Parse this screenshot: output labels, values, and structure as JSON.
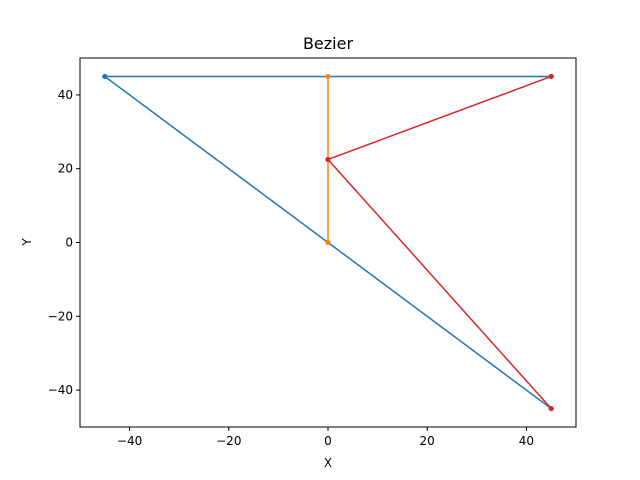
{
  "chart_data": {
    "type": "line",
    "title": "Bezier",
    "xlabel": "X",
    "ylabel": "Y",
    "xlim": [
      -50,
      50
    ],
    "ylim": [
      -50,
      50
    ],
    "xticks": [
      -40,
      -20,
      0,
      20,
      40
    ],
    "yticks": [
      -40,
      -20,
      0,
      20,
      40
    ],
    "xtick_labels": [
      "−40",
      "−20",
      "0",
      "20",
      "40"
    ],
    "ytick_labels": [
      "−40",
      "−20",
      "0",
      "20",
      "40"
    ],
    "grid": false,
    "series": [
      {
        "color": "#1f77b4",
        "marker": "point",
        "points": [
          [
            45,
            45
          ],
          [
            -45,
            45
          ],
          [
            45,
            -45
          ]
        ]
      },
      {
        "color": "#ff7f0e",
        "marker": "point",
        "points": [
          [
            0,
            45
          ],
          [
            0,
            0
          ]
        ]
      },
      {
        "color": "#d62728",
        "marker": "point",
        "points": [
          [
            45,
            45
          ],
          [
            0,
            22.5
          ],
          [
            45,
            -45
          ]
        ]
      }
    ]
  }
}
